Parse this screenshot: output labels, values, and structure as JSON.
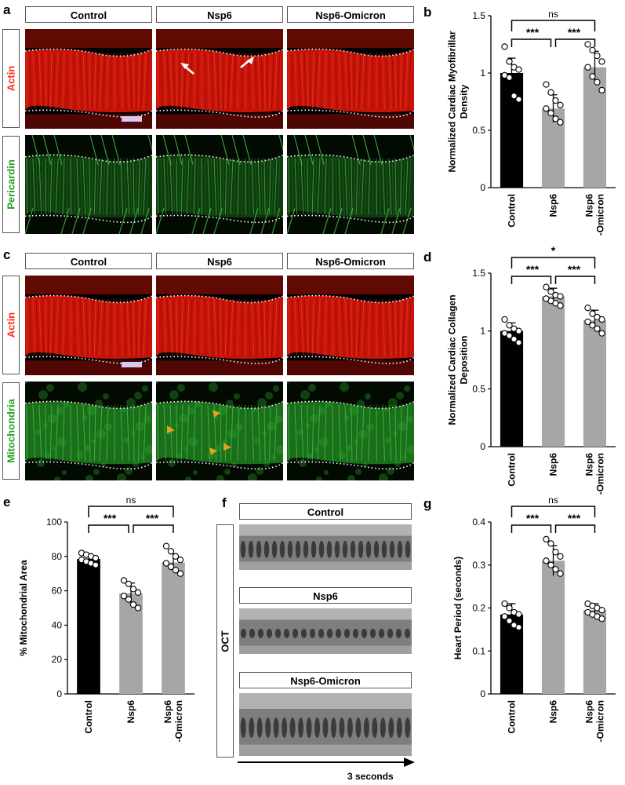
{
  "panels": {
    "a": {
      "label": "a",
      "columns": [
        "Control",
        "Nsp6",
        "Nsp6-Omicron"
      ],
      "rows": [
        "Actin",
        "Pericardin"
      ],
      "row_colors": [
        "#ff2a1a",
        "#22a022"
      ]
    },
    "c": {
      "label": "c",
      "columns": [
        "Control",
        "Nsp6",
        "Nsp6-Omicron"
      ],
      "rows": [
        "Actin",
        "Mitochondria"
      ],
      "row_colors": [
        "#ff2a1a",
        "#22a022"
      ]
    },
    "f": {
      "label": "f",
      "side_label": "OCT",
      "rows": [
        "Control",
        "Nsp6",
        "Nsp6-Omicron"
      ],
      "time_label": "3 seconds"
    }
  },
  "chart_data": [
    {
      "id": "b",
      "label": "b",
      "type": "bar",
      "categories": [
        "Control",
        "Nsp6",
        "Nsp6\n-Omicron"
      ],
      "values": [
        1.0,
        0.69,
        1.05
      ],
      "errors": [
        0.13,
        0.12,
        0.14
      ],
      "points": [
        [
          1.23,
          1.1,
          1.05,
          1.03,
          0.98,
          0.96,
          0.8,
          0.77
        ],
        [
          0.9,
          0.83,
          0.76,
          0.72,
          0.69,
          0.65,
          0.6,
          0.57
        ],
        [
          1.25,
          1.2,
          1.15,
          1.1,
          1.05,
          0.97,
          0.92,
          0.85
        ]
      ],
      "bar_colors": [
        "#000000",
        "#a6a6a6",
        "#a6a6a6"
      ],
      "ylabel": "Normalized Cardiac Myofibrillar\nDensity",
      "ylim": [
        0,
        1.5
      ],
      "yticks": [
        0,
        0.5,
        1,
        1.5
      ],
      "yticklabels": [
        "0",
        "0.5",
        "1",
        "1.5"
      ],
      "significance": [
        {
          "from": 0,
          "to": 2,
          "text": "ns",
          "level": "top"
        },
        {
          "from": 0,
          "to": 1,
          "text": "***",
          "level": "low"
        },
        {
          "from": 1,
          "to": 2,
          "text": "***",
          "level": "low"
        }
      ]
    },
    {
      "id": "d",
      "label": "d",
      "type": "bar",
      "categories": [
        "Control",
        "Nsp6",
        "Nsp6\n-Omicron"
      ],
      "values": [
        1.0,
        1.3,
        1.09
      ],
      "errors": [
        0.07,
        0.07,
        0.09
      ],
      "points": [
        [
          1.1,
          1.05,
          1.02,
          1.0,
          0.98,
          0.96,
          0.93,
          0.9
        ],
        [
          1.38,
          1.34,
          1.31,
          1.3,
          1.28,
          1.26,
          1.24,
          1.22
        ],
        [
          1.2,
          1.15,
          1.12,
          1.1,
          1.08,
          1.05,
          1.02,
          0.98
        ]
      ],
      "bar_colors": [
        "#000000",
        "#a6a6a6",
        "#a6a6a6"
      ],
      "ylabel": "Normalized Cardiac Collagen\nDeposition",
      "ylim": [
        0,
        1.5
      ],
      "yticks": [
        0,
        0.5,
        1,
        1.5
      ],
      "yticklabels": [
        "0",
        "0.5",
        "1",
        "1.5"
      ],
      "significance": [
        {
          "from": 0,
          "to": 2,
          "text": "*",
          "level": "top"
        },
        {
          "from": 0,
          "to": 1,
          "text": "***",
          "level": "low"
        },
        {
          "from": 1,
          "to": 2,
          "text": "***",
          "level": "low"
        }
      ]
    },
    {
      "id": "e",
      "label": "e",
      "type": "bar",
      "categories": [
        "Control",
        "Nsp6",
        "Nsp6\n-Omicron"
      ],
      "values": [
        78.5,
        58.5,
        76.5
      ],
      "errors": [
        3,
        6,
        5
      ],
      "points": [
        [
          82,
          81,
          80,
          79,
          78,
          77,
          76,
          75
        ],
        [
          66,
          64,
          61,
          59,
          57,
          55,
          52,
          50
        ],
        [
          86,
          83,
          80,
          78,
          76,
          74,
          72,
          70
        ]
      ],
      "bar_colors": [
        "#000000",
        "#a6a6a6",
        "#a6a6a6"
      ],
      "ylabel": "% Mitochondrial Area",
      "ylim": [
        0,
        100
      ],
      "yticks": [
        0,
        20,
        40,
        60,
        80,
        100
      ],
      "yticklabels": [
        "0",
        "20",
        "40",
        "60",
        "80",
        "100"
      ],
      "significance": [
        {
          "from": 0,
          "to": 2,
          "text": "ns",
          "level": "top"
        },
        {
          "from": 0,
          "to": 1,
          "text": "***",
          "level": "low"
        },
        {
          "from": 1,
          "to": 2,
          "text": "***",
          "level": "low"
        }
      ]
    },
    {
      "id": "g",
      "label": "g",
      "type": "bar",
      "categories": [
        "Control",
        "Nsp6",
        "Nsp6\n-Omicron"
      ],
      "values": [
        0.185,
        0.31,
        0.195
      ],
      "errors": [
        0.025,
        0.035,
        0.015
      ],
      "points": [
        [
          0.21,
          0.2,
          0.19,
          0.185,
          0.18,
          0.17,
          0.16,
          0.155
        ],
        [
          0.36,
          0.35,
          0.33,
          0.32,
          0.31,
          0.3,
          0.29,
          0.28
        ],
        [
          0.21,
          0.205,
          0.2,
          0.195,
          0.19,
          0.185,
          0.18,
          0.175
        ]
      ],
      "bar_colors": [
        "#000000",
        "#a6a6a6",
        "#a6a6a6"
      ],
      "ylabel": "Heart Period (seconds)",
      "ylim": [
        0,
        0.4
      ],
      "yticks": [
        0,
        0.1,
        0.2,
        0.3,
        0.4
      ],
      "yticklabels": [
        "0",
        "0.1",
        "0.2",
        "0.3",
        "0.4"
      ],
      "significance": [
        {
          "from": 0,
          "to": 2,
          "text": "ns",
          "level": "top"
        },
        {
          "from": 0,
          "to": 1,
          "text": "***",
          "level": "low"
        },
        {
          "from": 1,
          "to": 2,
          "text": "***",
          "level": "low"
        }
      ]
    }
  ]
}
